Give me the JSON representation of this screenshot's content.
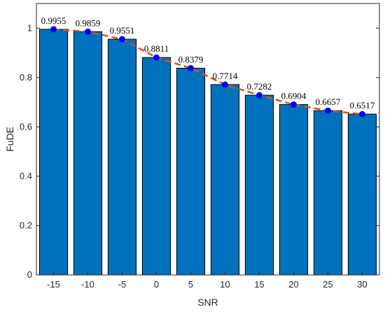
{
  "chart_data": {
    "type": "bar",
    "title": "",
    "xlabel": "SNR",
    "ylabel": "FuDE",
    "categories": [
      "-15",
      "-10",
      "-5",
      "0",
      "5",
      "10",
      "15",
      "20",
      "25",
      "30"
    ],
    "series": [
      {
        "values": [
          0.9955,
          0.9859,
          0.9551,
          0.8811,
          0.8379,
          0.7714,
          0.7282,
          0.6904,
          0.6657,
          0.6517
        ],
        "data_labels": [
          "0.9955",
          "0.9859",
          "0.9551",
          "0.8811",
          "0.8379",
          "0.7714",
          "0.7282",
          "0.6904",
          "0.6657",
          "0.6517"
        ]
      }
    ],
    "overlay": {
      "type": "line",
      "style": "dashed",
      "markers": "circle"
    },
    "ylim": [
      0,
      1.1
    ],
    "yticks": [
      "0",
      "0.2",
      "0.4",
      "0.6",
      "0.8",
      "1"
    ],
    "ytick_values": [
      0,
      0.2,
      0.4,
      0.6,
      0.8,
      1.0
    ],
    "grid": false,
    "legend": "none",
    "colors": {
      "bar_fill": "#0072BD",
      "bar_edge": "#000000",
      "line": "#D95319",
      "marker": "#0000FF"
    }
  }
}
